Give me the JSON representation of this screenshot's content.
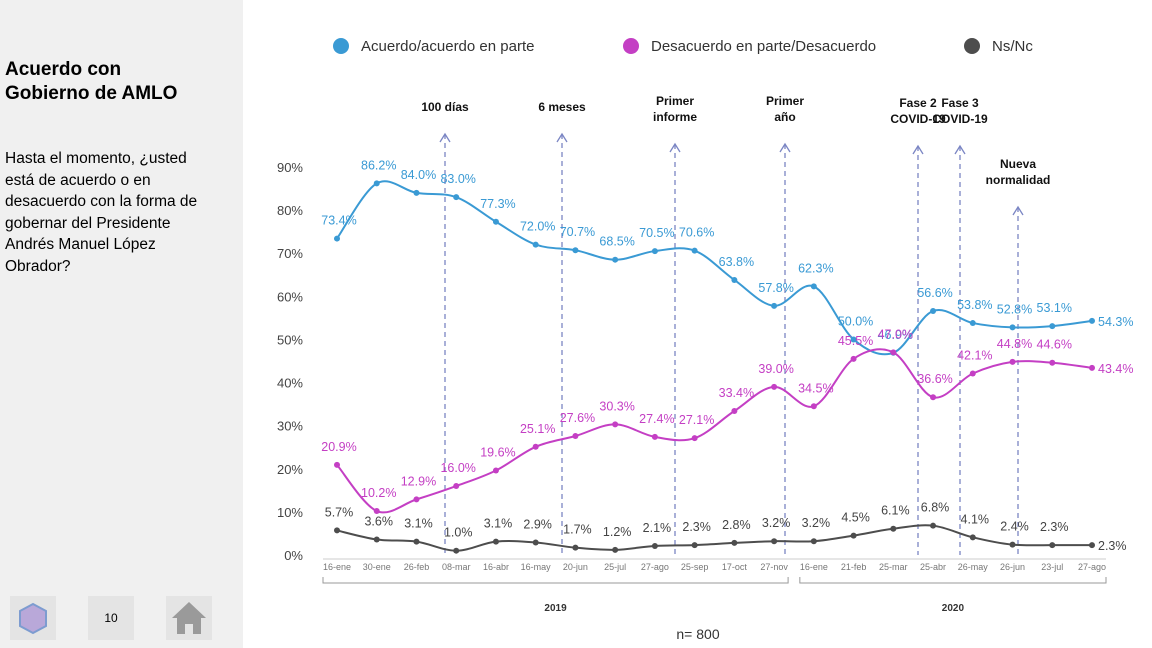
{
  "sidebar": {
    "title": "Acuerdo con Gobierno de AMLO",
    "question": "Hasta el momento, ¿usted está de acuerdo o en desacuerdo con la forma de gobernar del Presidente Andrés Manuel López Obrador?",
    "page_number": 10
  },
  "chart_data": {
    "type": "line",
    "categories": [
      "16-ene",
      "30-ene",
      "26-feb",
      "08-mar",
      "16-abr",
      "16-may",
      "20-jun",
      "25-jul",
      "27-ago",
      "25-sep",
      "17-oct",
      "27-nov",
      "16-ene",
      "21-feb",
      "25-mar",
      "25-abr",
      "26-may",
      "26-jun",
      "23-jul",
      "27-ago"
    ],
    "series": [
      {
        "name": "Acuerdo/acuerdo en parte",
        "color": "#3a9ad4",
        "values": [
          73.4,
          86.2,
          84.0,
          83.0,
          77.3,
          72.0,
          70.7,
          68.5,
          70.5,
          70.6,
          63.8,
          57.8,
          62.3,
          50.0,
          46.9,
          56.6,
          53.8,
          52.8,
          53.1,
          54.3
        ],
        "value_labels": [
          "73.4%",
          "86.2%",
          "84.0%",
          "83.0%",
          "77.3%",
          "72.0%",
          "70.7%",
          "68.5%",
          "70.5%",
          "70.6%",
          "63.8%",
          "57.8%",
          "62.3%",
          "50.0%",
          "46.9%",
          "56.6%",
          "53.8%",
          "52.8%",
          "53.1%",
          "54.3%"
        ]
      },
      {
        "name": "Desacuerdo en parte/Desacuerdo",
        "color": "#c43fc4",
        "values": [
          20.9,
          10.2,
          12.9,
          16.0,
          19.6,
          25.1,
          27.6,
          30.3,
          27.4,
          27.1,
          33.4,
          39.0,
          34.5,
          45.5,
          47.0,
          36.6,
          42.1,
          44.8,
          44.6,
          43.4
        ],
        "value_labels": [
          "20.9%",
          "10.2%",
          "12.9%",
          "16.0%",
          "19.6%",
          "25.1%",
          "27.6%",
          "30.3%",
          "27.4%",
          "27.1%",
          "33.4%",
          "39.0%",
          "34.5%",
          "45.5%",
          "47.0%",
          "36.6%",
          "42.1%",
          "44.8%",
          "44.6%",
          "43.4%"
        ]
      },
      {
        "name": "Ns/Nc",
        "color": "#4d4d4d",
        "values": [
          5.7,
          3.6,
          3.1,
          1.0,
          3.1,
          2.9,
          1.7,
          1.2,
          2.1,
          2.3,
          2.8,
          3.2,
          3.2,
          4.5,
          6.1,
          6.8,
          4.1,
          2.4,
          2.3,
          2.3
        ],
        "value_labels": [
          "5.7%",
          "3.6%",
          "3.1%",
          "1.0%",
          "3.1%",
          "2.9%",
          "1.7%",
          "1.2%",
          "2.1%",
          "2.3%",
          "2.8%",
          "3.2%",
          "3.2%",
          "4.5%",
          "6.1%",
          "6.8%",
          "4.1%",
          "2.4%",
          "2.3%",
          "2.3%"
        ]
      }
    ],
    "ylim": [
      0,
      90
    ],
    "yticks": [
      {
        "value": 0,
        "label": "0%"
      },
      {
        "value": 10,
        "label": "10%"
      },
      {
        "value": 20,
        "label": "20%"
      },
      {
        "value": 30,
        "label": "30%"
      },
      {
        "value": 40,
        "label": "40%"
      },
      {
        "value": 50,
        "label": "50%"
      },
      {
        "value": 60,
        "label": "60%"
      },
      {
        "value": 70,
        "label": "70%"
      },
      {
        "value": 80,
        "label": "80%"
      },
      {
        "value": 90,
        "label": "90%"
      }
    ],
    "events": [
      {
        "lines": [
          "100 días"
        ]
      },
      {
        "lines": [
          "6 meses"
        ]
      },
      {
        "lines": [
          "Primer",
          "informe"
        ]
      },
      {
        "lines": [
          "Primer",
          "año"
        ]
      },
      {
        "lines": [
          "Fase 2",
          "COVID-19"
        ]
      },
      {
        "lines": [
          "Fase 3",
          "COVID-19"
        ]
      },
      {
        "lines": [
          "Nueva",
          "normalidad"
        ]
      }
    ],
    "periods": [
      "2019",
      "2020"
    ],
    "note": "n= 800"
  }
}
